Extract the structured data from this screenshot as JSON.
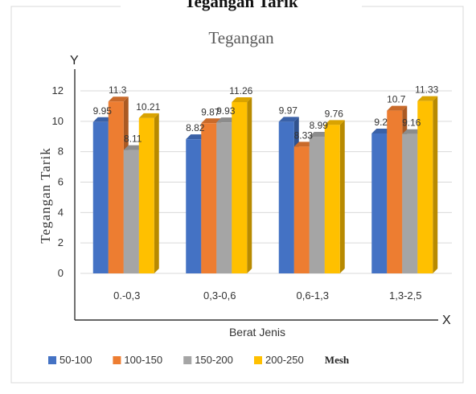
{
  "heading": "Tegangan Tarik",
  "chart_data": {
    "type": "bar",
    "title": "Tegangan",
    "xlabel": "Berat Jenis",
    "ylabel": "Tegangan Tarik",
    "x_axis_letter": "X",
    "y_axis_letter": "Y",
    "categories": [
      "0.-0,3",
      "0,3-0,6",
      "0,6-1,3",
      "1,3-2,5"
    ],
    "series": [
      {
        "name": "50-100",
        "color": "#4472c4",
        "values": [
          9.95,
          8.82,
          9.97,
          9.2
        ],
        "labels": [
          "9.95",
          "8.82",
          "9.97",
          "9.2"
        ]
      },
      {
        "name": "100-150",
        "color": "#ed7d31",
        "values": [
          11.3,
          9.87,
          8.33,
          10.7
        ],
        "labels": [
          "11.3",
          "9.87",
          "8.33",
          "10.7"
        ]
      },
      {
        "name": "150-200",
        "color": "#a5a5a5",
        "values": [
          8.11,
          9.93,
          8.99,
          9.16
        ],
        "labels": [
          "8.11",
          "9.93",
          "8.99",
          "9.16"
        ]
      },
      {
        "name": "200-250",
        "color": "#ffc000",
        "values": [
          10.21,
          11.26,
          9.76,
          11.33
        ],
        "labels": [
          "10.21",
          "11.26",
          "9.76",
          "11.33"
        ]
      }
    ],
    "ylim": [
      0,
      12
    ],
    "yticks": [
      "0",
      "2",
      "4",
      "6",
      "8",
      "10",
      "12"
    ],
    "legend_unit": "Mesh",
    "legend_position": "bottom",
    "grid": true
  }
}
